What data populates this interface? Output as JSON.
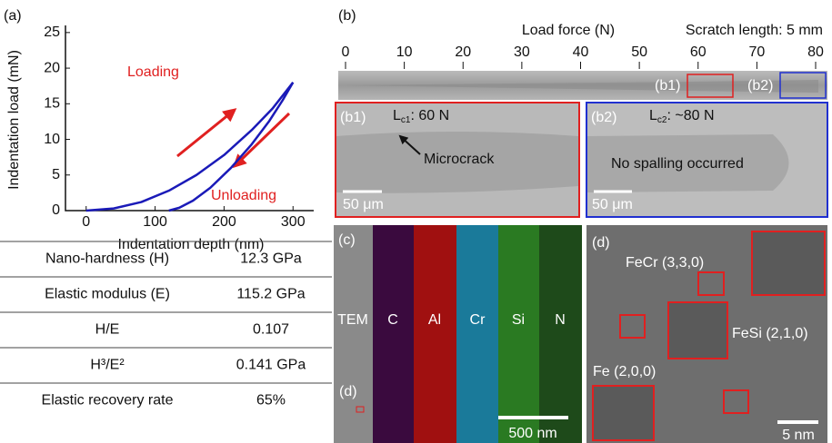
{
  "chart_data": {
    "type": "line",
    "panel": "(a)",
    "x_label": "Indentation depth (nm)",
    "y_label": "Indentation load (mN)",
    "xlim": [
      -30,
      330
    ],
    "xticks": [
      0,
      100,
      200,
      300
    ],
    "ylim": [
      0,
      26
    ],
    "yticks": [
      0,
      5,
      10,
      15,
      20,
      25
    ],
    "series": [
      {
        "color": "#1a1ab8",
        "x": [
          0,
          40,
          80,
          120,
          160,
          200,
          240,
          270,
          300
        ],
        "values": [
          0,
          0.3,
          1.2,
          2.8,
          5,
          7.8,
          11.3,
          14.3,
          18
        ]
      },
      {
        "color": "#1a1ab8",
        "x": [
          300,
          285,
          265,
          240,
          210,
          180,
          155,
          135,
          120
        ],
        "values": [
          18,
          15.5,
          12.5,
          9.3,
          6,
          3.2,
          1.4,
          0.4,
          0
        ]
      }
    ],
    "annotations": [
      "Loading",
      "Unloading"
    ]
  },
  "table": {
    "rows": [
      [
        "Nano-hardness (H)",
        "12.3 GPa"
      ],
      [
        "Elastic modulus (E)",
        "115.2 GPa"
      ],
      [
        "H/E",
        "0.107"
      ],
      [
        "H³/E²",
        "0.141 GPa"
      ],
      [
        "Elastic recovery rate",
        "65%"
      ]
    ]
  },
  "panel_b": {
    "label": "(b)",
    "axis_title": "Load force (N)",
    "note": "Scratch length: 5 mm",
    "ticks": [
      0,
      10,
      20,
      30,
      40,
      50,
      60,
      70,
      80
    ],
    "markers": [
      "(b1)",
      "(b2)"
    ],
    "b1": {
      "label": "(b1)",
      "L": "L",
      "sub": "c1",
      "rest": ": 60 N",
      "arrow_text": "Microcrack",
      "scale": "50 μm"
    },
    "b2": {
      "label": "(b2)",
      "L": "L",
      "sub": "c2",
      "rest": ": ~80 N",
      "text": "No spalling occurred",
      "scale": "50 μm"
    }
  },
  "panel_c": {
    "label": "(c)",
    "columns": [
      "TEM",
      "C",
      "Al",
      "Cr",
      "Si",
      "N"
    ],
    "marker": "(d)",
    "scale": "500 nm"
  },
  "panel_d": {
    "label": "(d)",
    "annotations": [
      "FeCr (3,3,0)",
      "FeSi (2,1,0)",
      "Fe (2,0,0)"
    ],
    "scale": "5 nm"
  }
}
